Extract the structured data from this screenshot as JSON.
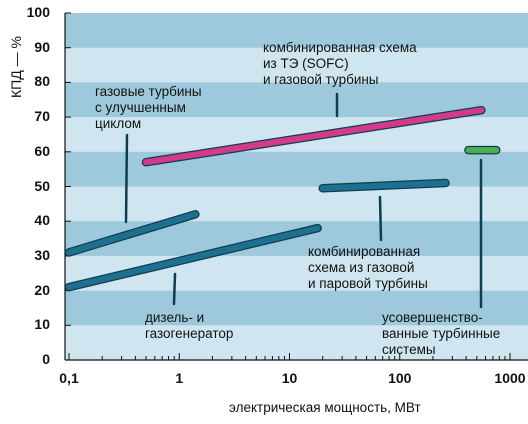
{
  "chart_data": {
    "type": "line",
    "xscale": "log",
    "xlim": [
      0.1,
      1000
    ],
    "ylim": [
      0,
      100
    ],
    "ylabel": "КПД — %",
    "xlabel": "электрическая мощность, МВт",
    "xtick_labels": [
      "0,1",
      "1",
      "10",
      "100",
      "1000"
    ],
    "ytick_labels": [
      "0",
      "10",
      "20",
      "30",
      "40",
      "50",
      "60",
      "70",
      "80",
      "90",
      "100"
    ],
    "bands": "alternating horizontal bands every 10 %",
    "series": [
      {
        "name": "газовые турбины\nс улучшенным\nциклом",
        "color": "#1e7090",
        "x": [
          0.1,
          1.4
        ],
        "y": [
          31,
          42
        ]
      },
      {
        "name": "дизель- и\nгазогенератор",
        "color": "#1e7090",
        "x": [
          0.1,
          18
        ],
        "y": [
          21,
          38
        ]
      },
      {
        "name": "комбинированная схема\nиз ТЭ (SOFC)\nи газовой турбины",
        "color": "#d43a8a",
        "x": [
          0.5,
          550
        ],
        "y": [
          57,
          72
        ]
      },
      {
        "name": "комбинированная\nсхема из газовой\nи паровой турбины",
        "color": "#1e7090",
        "x": [
          20,
          260
        ],
        "y": [
          49.5,
          51
        ]
      },
      {
        "name": "усовершенство-\nванные турбинные\nсистемы",
        "color": "#4caf50",
        "x": [
          420,
          750
        ],
        "y": [
          60.5,
          60.5
        ]
      }
    ]
  }
}
